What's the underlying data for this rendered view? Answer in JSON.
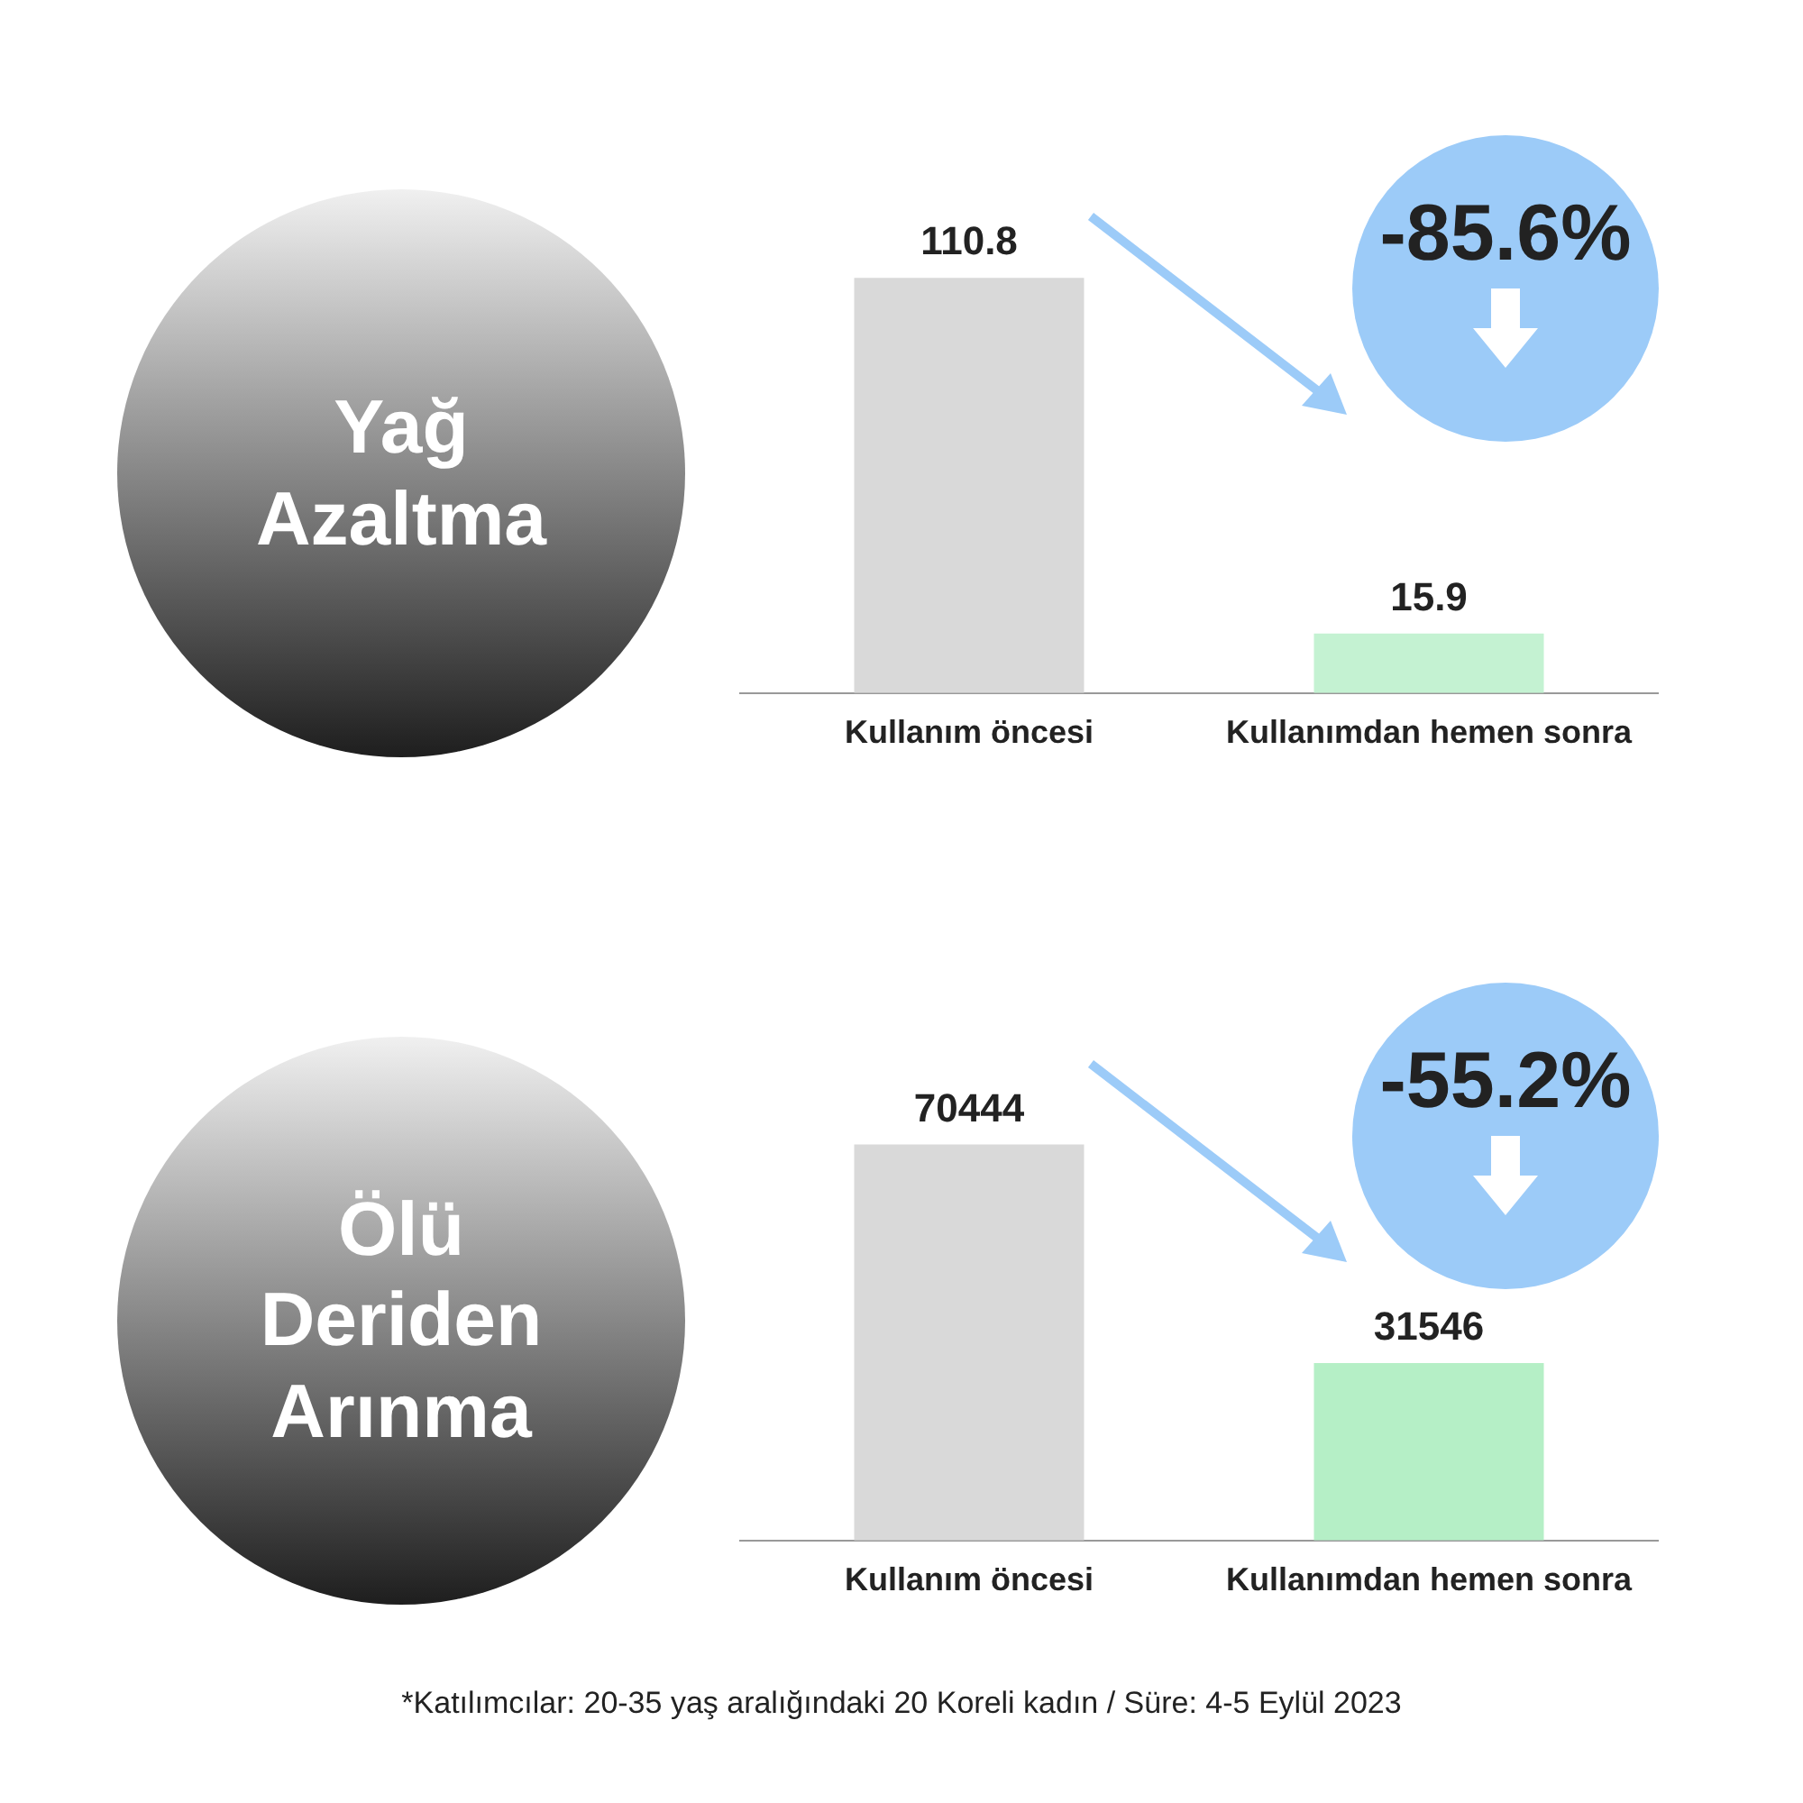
{
  "chart_data": [
    {
      "type": "bar",
      "title": "Yağ Azaltma",
      "categories": [
        "Kullanım öncesi",
        "Kullanımdan hemen sonra"
      ],
      "values": [
        110.8,
        15.9
      ],
      "colors": [
        "#d9d9d9",
        "#c4f2d2"
      ],
      "data_labels": true,
      "grid": false,
      "legend": false,
      "tick_labels": "x",
      "annotations": [
        "-85.6%"
      ]
    },
    {
      "type": "bar",
      "title": "Ölü Deriden Arınma",
      "categories": [
        "Kullanım öncesi",
        "Kullanımdan hemen sonra"
      ],
      "values": [
        70444,
        31546
      ],
      "colors": [
        "#d9d9d9",
        "#b5efc6"
      ],
      "data_labels": true,
      "grid": false,
      "legend": false,
      "tick_labels": "x",
      "annotations": [
        "-55.2%",
        "*Katılımcılar: 20-35 yaş aralığındaki 20 Koreli kadın / Süre: 4-5 Eylül 2023"
      ]
    }
  ]
}
